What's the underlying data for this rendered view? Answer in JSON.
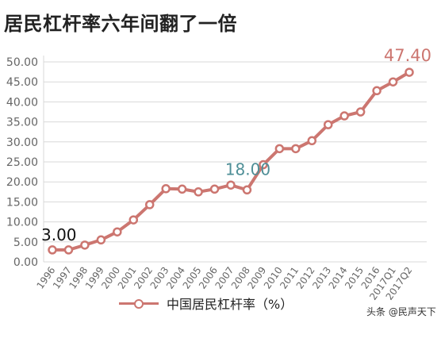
{
  "title": "居民杠杆率六年间翻了一倍",
  "watermark": "头条 @民声天下",
  "colors": {
    "line": "#cc7670",
    "teal_label": "#4f8f97",
    "grid": "#d8d8d8",
    "axis_text": "#666666"
  },
  "chart_data": {
    "type": "line",
    "categories": [
      "1996",
      "1997",
      "1998",
      "1999",
      "2000",
      "2001",
      "2002",
      "2003",
      "2004",
      "2005",
      "2006",
      "2007",
      "2008",
      "2009",
      "2010",
      "2011",
      "2012",
      "2013",
      "2014",
      "2015",
      "2016",
      "2017Q1",
      "2017Q2"
    ],
    "series": [
      {
        "name": "中国居民杠杆率（%）",
        "values": [
          3.0,
          3.0,
          4.2,
          5.5,
          7.5,
          10.5,
          14.3,
          18.3,
          18.2,
          17.5,
          18.2,
          19.2,
          18.0,
          24.3,
          28.3,
          28.3,
          30.3,
          34.3,
          36.5,
          37.5,
          42.8,
          45.0,
          47.4
        ]
      }
    ],
    "yticks": [
      "0.00",
      "5.00",
      "10.00",
      "15.00",
      "20.00",
      "25.00",
      "30.00",
      "35.00",
      "40.00",
      "45.00",
      "50.00"
    ],
    "ylim": [
      0,
      50
    ],
    "grid": true,
    "legend": "bottom",
    "annotations": [
      {
        "text": "3.00",
        "category": "1996",
        "color": "#111111"
      },
      {
        "text": "18.00",
        "category": "2008",
        "color": "#4f8f97"
      },
      {
        "text": "47.40",
        "category": "2017Q2",
        "color": "#cc7670"
      }
    ]
  }
}
